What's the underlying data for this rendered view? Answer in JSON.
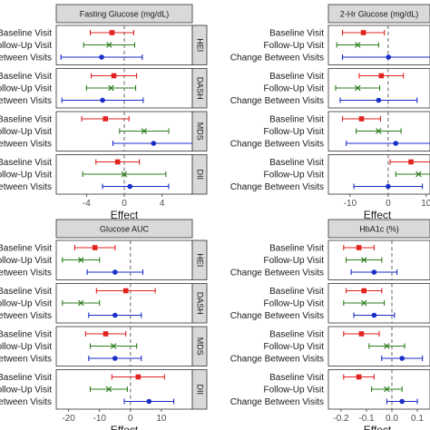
{
  "chart_data": {
    "type": "forest",
    "row_labels": [
      "Baseline Visit",
      "Follow-Up Visit",
      "Change Between Visits"
    ],
    "row_colors": [
      "#e0231f",
      "#2e7d1f",
      "#1a2ec8"
    ],
    "models": [
      "HEI",
      "DASH",
      "MDS",
      "DII"
    ],
    "xlabel": "Effect",
    "panels": [
      {
        "title": "Fasting Glucose (mg/dL)",
        "xlim": [
          -7.2,
          7.2
        ],
        "ticks": [
          -4,
          0,
          4
        ],
        "tick_labels": [
          "-4",
          "0",
          "4"
        ],
        "estimates": {
          "HEI": [
            {
              "est": -1.3,
              "lo": -3.6,
              "hi": 1.0
            },
            {
              "est": -1.6,
              "lo": -4.3,
              "hi": 1.1
            },
            {
              "est": -2.4,
              "lo": -6.7,
              "hi": 1.9
            }
          ],
          "DASH": [
            {
              "est": -1.1,
              "lo": -3.5,
              "hi": 1.3
            },
            {
              "est": -1.4,
              "lo": -4.0,
              "hi": 1.2
            },
            {
              "est": -2.3,
              "lo": -6.6,
              "hi": 2.0
            }
          ],
          "MDS": [
            {
              "est": -2.0,
              "lo": -4.5,
              "hi": 0.5
            },
            {
              "est": 2.1,
              "lo": -0.5,
              "hi": 4.7
            },
            {
              "est": 3.1,
              "lo": -1.2,
              "hi": 7.3
            }
          ],
          "DII": [
            {
              "est": -0.7,
              "lo": -3.0,
              "hi": 1.6
            },
            {
              "est": 0.0,
              "lo": -4.4,
              "hi": 4.4
            },
            {
              "est": 0.6,
              "lo": -2.3,
              "hi": 4.7
            }
          ]
        }
      },
      {
        "title": "2-Hr Glucose (mg/dL)",
        "xlim": [
          -15.7,
          11
        ],
        "ticks": [
          -10,
          0,
          10
        ],
        "tick_labels": [
          "-10",
          "0",
          "10"
        ],
        "estimates": {
          "HEI": [
            {
              "est": -6.5,
              "lo": -12.0,
              "hi": -1.0
            },
            {
              "est": -8.0,
              "lo": -13.5,
              "hi": -2.5
            },
            {
              "est": 0.1,
              "lo": -12.0,
              "hi": 12.0
            }
          ],
          "DASH": [
            {
              "est": -1.8,
              "lo": -7.6,
              "hi": 4.0
            },
            {
              "est": -8.0,
              "lo": -13.8,
              "hi": -2.2
            },
            {
              "est": -2.5,
              "lo": -12.6,
              "hi": 7.6
            }
          ],
          "MDS": [
            {
              "est": -7.0,
              "lo": -12.0,
              "hi": -2.0
            },
            {
              "est": -2.5,
              "lo": -8.4,
              "hi": 3.4
            },
            {
              "est": 2.0,
              "lo": -11.0,
              "hi": 15.0
            }
          ],
          "DII": [
            {
              "est": 6.0,
              "lo": 0.5,
              "hi": 11.5
            },
            {
              "est": 8.0,
              "lo": 2.0,
              "hi": 14.0
            },
            {
              "est": 0.0,
              "lo": -9.0,
              "hi": 9.0
            }
          ]
        }
      },
      {
        "title": "Glucose AUC",
        "xlim": [
          -24,
          20
        ],
        "ticks": [
          -20,
          -10,
          0,
          10
        ],
        "tick_labels": [
          "-20",
          "-10",
          "0",
          "10"
        ],
        "estimates": {
          "HEI": [
            {
              "est": -11.5,
              "lo": -18.0,
              "hi": -5.0
            },
            {
              "est": -16.0,
              "lo": -22.0,
              "hi": -10.0
            },
            {
              "est": -5.0,
              "lo": -14.0,
              "hi": 4.0
            }
          ],
          "DASH": [
            {
              "est": -1.5,
              "lo": -11.0,
              "hi": 8.0
            },
            {
              "est": -16.0,
              "lo": -22.0,
              "hi": -10.0
            },
            {
              "est": -5.0,
              "lo": -13.5,
              "hi": 3.5
            }
          ],
          "MDS": [
            {
              "est": -8.0,
              "lo": -14.5,
              "hi": -1.5
            },
            {
              "est": -5.5,
              "lo": -13.0,
              "hi": 2.0
            },
            {
              "est": -5.0,
              "lo": -13.5,
              "hi": 3.5
            }
          ],
          "DII": [
            {
              "est": 2.5,
              "lo": -6.0,
              "hi": 11.0
            },
            {
              "est": -7.0,
              "lo": -13.0,
              "hi": -1.0
            },
            {
              "est": 6.0,
              "lo": -2.0,
              "hi": 14.0
            }
          ]
        }
      },
      {
        "title": "HbA1c (%)",
        "xlim": [
          -0.25,
          0.15
        ],
        "ticks": [
          -0.2,
          -0.1,
          0.0,
          0.1
        ],
        "tick_labels": [
          "-0.2",
          "-0.1",
          "0.0",
          "0.1"
        ],
        "estimates": {
          "HEI": [
            {
              "est": -0.13,
              "lo": -0.19,
              "hi": -0.07
            },
            {
              "est": -0.11,
              "lo": -0.18,
              "hi": -0.04
            },
            {
              "est": -0.07,
              "lo": -0.16,
              "hi": 0.02
            }
          ],
          "DASH": [
            {
              "est": -0.11,
              "lo": -0.18,
              "hi": -0.04
            },
            {
              "est": -0.11,
              "lo": -0.19,
              "hi": -0.03
            },
            {
              "est": -0.07,
              "lo": -0.15,
              "hi": 0.01
            }
          ],
          "MDS": [
            {
              "est": -0.12,
              "lo": -0.19,
              "hi": -0.05
            },
            {
              "est": -0.02,
              "lo": -0.09,
              "hi": 0.05
            },
            {
              "est": 0.04,
              "lo": -0.04,
              "hi": 0.12
            }
          ],
          "DII": [
            {
              "est": -0.13,
              "lo": -0.19,
              "hi": -0.07
            },
            {
              "est": -0.02,
              "lo": -0.08,
              "hi": 0.04
            },
            {
              "est": 0.04,
              "lo": -0.02,
              "hi": 0.1
            }
          ]
        }
      }
    ]
  }
}
